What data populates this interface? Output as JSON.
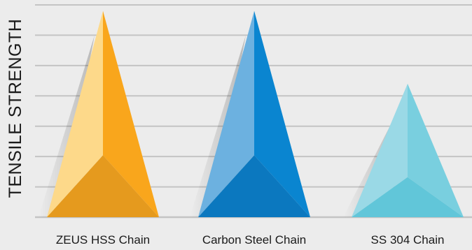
{
  "chart_data": {
    "type": "bar",
    "style": "3d-pyramid",
    "ylabel": "TENSILE STRENGTH",
    "xlabel": "",
    "grid": true,
    "ylim": [
      0,
      7
    ],
    "categories": [
      "ZEUS HSS Chain",
      "Carbon Steel Chain",
      "SS 304 Chain"
    ],
    "values": [
      6.8,
      6.8,
      4.4
    ],
    "colors": {
      "ZEUS HSS Chain": {
        "light": "#fdd98a",
        "mid": "#f9a61c",
        "dark": "#e59a1e"
      },
      "Carbon Steel Chain": {
        "light": "#6cb1e0",
        "mid": "#0a85d0",
        "dark": "#0b78bf"
      },
      "SS 304 Chain": {
        "light": "#9ad9e6",
        "mid": "#79cfdf",
        "dark": "#61c6d9"
      }
    },
    "background": "#ececec",
    "gridline_color": "#c4c4c4"
  }
}
